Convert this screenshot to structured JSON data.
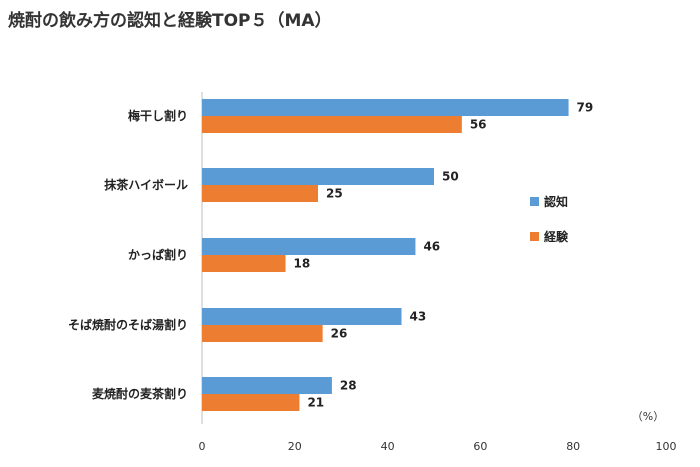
{
  "chart_data": {
    "type": "bar",
    "orientation": "horizontal",
    "title": "焼酎の飲み方の認知と経験TOP５（MA）",
    "categories": [
      "梅干し割り",
      "抹茶ハイボール",
      "かっぱ割り",
      "そば焼酎のそば湯割り",
      "麦焼酎の麦茶割り"
    ],
    "series": [
      {
        "name": "認知",
        "values": [
          79,
          50,
          46,
          43,
          28
        ],
        "color": "#5b9bd5"
      },
      {
        "name": "経験",
        "values": [
          56,
          25,
          18,
          26,
          21
        ],
        "color": "#ed7d31"
      }
    ],
    "xlim": [
      0,
      100
    ],
    "xticks": [
      0,
      20,
      40,
      60,
      80,
      100
    ],
    "unit": "（%）",
    "legend_position": "right",
    "grid": false
  }
}
